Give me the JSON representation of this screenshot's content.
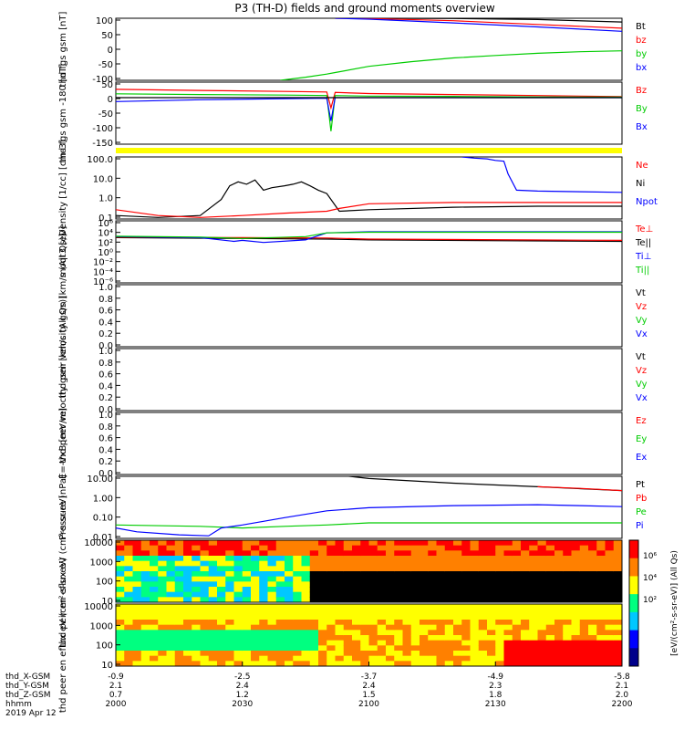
{
  "title": "P3 (TH-D) fields and ground moments overview",
  "chart_data": {
    "type": "line",
    "title": "P3 (TH-D) fields and ground moments overview",
    "x_axis": {
      "tick_labels": {
        "thd_X-GSM": [
          "-0.9",
          "-2.5",
          "-3.7",
          "-4.9",
          "-5.8"
        ],
        "thd_Y-GSM": [
          "2.1",
          "2.4",
          "2.4",
          "2.3",
          "2.1"
        ],
        "thd_Z-GSM": [
          "0.7",
          "1.2",
          "1.5",
          "1.8",
          "2.0"
        ],
        "hhmm": [
          "2000",
          "2030",
          "2100",
          "2130",
          "2200"
        ]
      },
      "row_labels": [
        "thd_X-GSM",
        "thd_Y-GSM",
        "thd_Z-GSM",
        "hhmm"
      ],
      "date_label": "2019 Apr 12",
      "range": [
        0,
        120
      ]
    },
    "panels": [
      {
        "ylabel": "thd fgs gsm [nT]",
        "yticks": [
          "100",
          "50",
          "0",
          "-50",
          "-100"
        ],
        "ylim": [
          -100,
          100
        ],
        "legend": [
          {
            "name": "Bt",
            "color": "#000000"
          },
          {
            "name": "bz",
            "color": "#ff0000"
          },
          {
            "name": "by",
            "color": "#00cc00"
          },
          {
            "name": "bx",
            "color": "#0000ff"
          }
        ],
        "series": [
          {
            "name": "Bt",
            "color": "#000000",
            "x": [
              52,
              60,
              80,
              100,
              120
            ],
            "y": [
              100,
              100,
              99,
              96,
              88
            ]
          },
          {
            "name": "bz",
            "color": "#ff0000",
            "x": [
              52,
              60,
              80,
              100,
              120
            ],
            "y": [
              100,
              99,
              92,
              80,
              68
            ]
          },
          {
            "name": "by",
            "color": "#00cc00",
            "x": [
              39,
              45,
              50,
              52,
              60,
              70,
              80,
              90,
              100,
              110,
              120
            ],
            "y": [
              -100,
              -90,
              -80,
              -75,
              -55,
              -40,
              -28,
              -20,
              -13,
              -8,
              -5
            ]
          },
          {
            "name": "bx",
            "color": "#0000ff",
            "x": [
              52,
              60,
              80,
              100,
              120
            ],
            "y": [
              100,
              97,
              85,
              72,
              58
            ]
          }
        ]
      },
      {
        "ylabel": "thd fgs gsm -180 [nT]",
        "yticks": [
          "50",
          "0",
          "-50",
          "-100",
          "-150"
        ],
        "ylim": [
          -180,
          60
        ],
        "legend": [
          {
            "name": "Bz",
            "color": "#ff0000"
          },
          {
            "name": "By",
            "color": "#00cc00"
          },
          {
            "name": "Bx",
            "color": "#0000ff"
          }
        ],
        "series": [
          {
            "name": "Bz",
            "color": "#ff0000",
            "x": [
              0,
              20,
              40,
              50,
              51,
              52,
              60,
              80,
              100,
              120
            ],
            "y": [
              32,
              28,
              24,
              22,
              -40,
              20,
              16,
              12,
              8,
              4
            ]
          },
          {
            "name": "By",
            "color": "#00cc00",
            "x": [
              0,
              20,
              40,
              50,
              51,
              52,
              60,
              80,
              100,
              120
            ],
            "y": [
              15,
              12,
              10,
              8,
              -130,
              8,
              6,
              5,
              3,
              2
            ]
          },
          {
            "name": "Bx",
            "color": "#0000ff",
            "x": [
              0,
              20,
              40,
              50,
              51,
              52,
              60,
              80,
              100,
              120
            ],
            "y": [
              -15,
              -8,
              -4,
              -2,
              -90,
              0,
              0,
              0,
              0,
              0
            ]
          },
          {
            "name": "zero",
            "color": "#000000",
            "x": [
              0,
              120
            ],
            "y": [
              0,
              0
            ]
          }
        ]
      },
      {
        "ylabel": "Density [1/cc] [cm-3]",
        "yticks": [
          "100.0",
          "10.0",
          "1.0",
          "0.1"
        ],
        "ylim": [
          0.1,
          150
        ],
        "log": true,
        "legend": [
          {
            "name": "Ne",
            "color": "#ff0000"
          },
          {
            "name": "Ni",
            "color": "#000000"
          },
          {
            "name": "Npot",
            "color": "#0000ff"
          }
        ],
        "series": [
          {
            "name": "Ni",
            "color": "#000000",
            "x": [
              0,
              10,
              20,
              25,
              27,
              29,
              31,
              33,
              35,
              37,
              40,
              42,
              44,
              46,
              48,
              50,
              53,
              60,
              80,
              100,
              120
            ],
            "y": [
              0.15,
              0.12,
              0.15,
              1.0,
              5,
              8,
              6,
              10,
              3,
              4,
              5,
              6,
              8,
              5,
              3,
              2,
              0.25,
              0.3,
              0.4,
              0.45,
              0.45
            ]
          },
          {
            "name": "Ne",
            "color": "#ff0000",
            "x": [
              0,
              10,
              20,
              30,
              40,
              50,
              53,
              60,
              80,
              100,
              120
            ],
            "y": [
              0.3,
              0.15,
              0.12,
              0.15,
              0.2,
              0.25,
              0.35,
              0.6,
              0.7,
              0.7,
              0.7
            ]
          },
          {
            "name": "Npot",
            "color": "#0000ff",
            "x": [
              82,
              85,
              88,
              90,
              92,
              93,
              95,
              100,
              110,
              120
            ],
            "y": [
              150,
              130,
              120,
              100,
              90,
              20,
              3,
              2.7,
              2.5,
              2.3
            ]
          }
        ]
      },
      {
        "ylabel": "moqt3 [eV]",
        "yticks": [
          "10⁶",
          "10⁴",
          "10²",
          "10⁰",
          "10⁻²",
          "10⁻⁴",
          "10⁻⁶"
        ],
        "ylim": [
          1e-06,
          10000000.0
        ],
        "log": true,
        "legend": [
          {
            "name": "Te⊥",
            "color": "#ff0000"
          },
          {
            "name": "Te||",
            "color": "#000000"
          },
          {
            "name": "Ti⊥",
            "color": "#0000ff"
          },
          {
            "name": "Ti||",
            "color": "#00cc00"
          }
        ],
        "series": [
          {
            "name": "Te||",
            "color": "#000000",
            "x": [
              0,
              30,
              50,
              60,
              120
            ],
            "y": [
              3000,
              2000,
              1500,
              1000,
              500
            ]
          },
          {
            "name": "Te⊥",
            "color": "#ff0000",
            "x": [
              0,
              30,
              50,
              60,
              120
            ],
            "y": [
              4000,
              3000,
              2500,
              1500,
              800
            ]
          },
          {
            "name": "Ti⊥",
            "color": "#0000ff",
            "x": [
              0,
              20,
              28,
              30,
              35,
              45,
              50,
              60,
              120
            ],
            "y": [
              5000,
              3000,
              500,
              800,
              300,
              1000,
              30000,
              50000,
              50000
            ]
          },
          {
            "name": "Ti||",
            "color": "#00cc00",
            "x": [
              0,
              20,
              30,
              45,
              50,
              60,
              120
            ],
            "y": [
              6000,
              4000,
              2000,
              5000,
              30000,
              40000,
              40000
            ]
          }
        ]
      },
      {
        "ylabel": "thd peir velocity gsm [km/s (All Qs)]",
        "yticks": [
          "1.0",
          "0.8",
          "0.6",
          "0.4",
          "0.2",
          "0.0"
        ],
        "ylim": [
          0,
          1
        ],
        "legend": [
          {
            "name": "Vt",
            "color": "#000000"
          },
          {
            "name": "Vz",
            "color": "#ff0000"
          },
          {
            "name": "Vy",
            "color": "#00cc00"
          },
          {
            "name": "Vx",
            "color": "#0000ff"
          }
        ],
        "series": []
      },
      {
        "ylabel": "thd peer velocity gsm [km/s (All Qs)]",
        "yticks": [
          "1.0",
          "0.8",
          "0.6",
          "0.4",
          "0.2",
          "0.0"
        ],
        "ylim": [
          0,
          1
        ],
        "legend": [
          {
            "name": "Vt",
            "color": "#000000"
          },
          {
            "name": "Vz",
            "color": "#ff0000"
          },
          {
            "name": "Vy",
            "color": "#00cc00"
          },
          {
            "name": "Vx",
            "color": "#0000ff"
          }
        ],
        "series": []
      },
      {
        "ylabel": "E=-VxB [mV/m]",
        "yticks": [
          "1.0",
          "0.8",
          "0.6",
          "0.4",
          "0.2",
          "0.0"
        ],
        "ylim": [
          0,
          1
        ],
        "legend": [
          {
            "name": "Ez",
            "color": "#ff0000"
          },
          {
            "name": "Ey",
            "color": "#00cc00"
          },
          {
            "name": "Ex",
            "color": "#0000ff"
          }
        ],
        "series": []
      },
      {
        "ylabel": "Pressure [nPa]",
        "yticks": [
          "10.00",
          "1.00",
          "0.10",
          "0.01"
        ],
        "ylim": [
          0.005,
          20
        ],
        "log": true,
        "legend": [
          {
            "name": "Pt",
            "color": "#000000"
          },
          {
            "name": "Pb",
            "color": "#ff0000"
          },
          {
            "name": "Pe",
            "color": "#00cc00"
          },
          {
            "name": "Pi",
            "color": "#0000ff"
          }
        ],
        "series": [
          {
            "name": "Pt",
            "color": "#000000",
            "x": [
              52,
              60,
              80,
              100,
              120
            ],
            "y": [
              25,
              15,
              8,
              5,
              3
            ]
          },
          {
            "name": "Pb",
            "color": "#ff0000",
            "x": [
              100,
              110,
              120
            ],
            "y": [
              5,
              4,
              3
            ]
          },
          {
            "name": "Pe",
            "color": "#00cc00",
            "x": [
              0,
              20,
              30,
              40,
              50,
              60,
              80,
              100,
              120
            ],
            "y": [
              0.03,
              0.025,
              0.02,
              0.025,
              0.03,
              0.04,
              0.04,
              0.04,
              0.04
            ]
          },
          {
            "name": "Pi",
            "color": "#0000ff",
            "x": [
              0,
              5,
              15,
              22,
              25,
              30,
              40,
              50,
              60,
              80,
              100,
              110,
              120
            ],
            "y": [
              0.02,
              0.012,
              0.008,
              0.007,
              0.02,
              0.03,
              0.08,
              0.2,
              0.3,
              0.4,
              0.45,
              0.4,
              0.35
            ]
          }
        ]
      },
      {
        "type": "heatmap",
        "ylabel": "thd peir en eflux eV (cm²-s-sr-eV)",
        "yticks": [
          "10000",
          "1000",
          "100",
          "10"
        ],
        "ylim": [
          5,
          25000
        ],
        "log": true
      },
      {
        "type": "heatmap",
        "ylabel": "thd peer en eflux eV (cm²-s-sr-eV)",
        "yticks": [
          "10000",
          "1000",
          "100",
          "10"
        ],
        "ylim": [
          5,
          25000
        ],
        "log": true
      }
    ],
    "colorbar": {
      "label": "[eV/(cm²-s-sr-eV)] (All Qs)",
      "ticks": [
        "10⁶",
        "10⁴",
        "10²"
      ],
      "colors": [
        "#00008b",
        "#0000ff",
        "#00c8ff",
        "#00ff80",
        "#ffff00",
        "#ff8000",
        "#ff0000"
      ]
    },
    "mode_strip_color": "#ffff00"
  }
}
